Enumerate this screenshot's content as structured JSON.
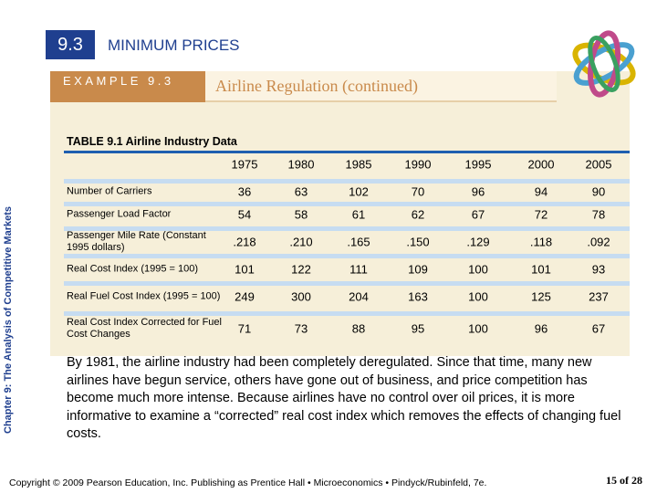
{
  "header": {
    "section_number": "9.3",
    "section_title": "MINIMUM PRICES"
  },
  "example": {
    "label": "EXAMPLE 9.3",
    "title": "Airline Regulation (continued)"
  },
  "side_label": "Chapter 9: The Analysis of Competitive Markets",
  "table": {
    "caption": "TABLE 9.1 Airline Industry Data",
    "columns": [
      1975,
      1980,
      1985,
      1990,
      1995,
      2000,
      2005
    ],
    "rows": [
      {
        "label": "Number of Carriers",
        "values": [
          36,
          63,
          102,
          70,
          96,
          94,
          90
        ]
      },
      {
        "label": "Passenger Load Factor",
        "values": [
          54,
          58,
          61,
          62,
          67,
          72,
          78
        ]
      },
      {
        "label": "Passenger Mile Rate (Constant 1995 dollars)",
        "values": [
          ".218",
          ".210",
          ".165",
          ".150",
          ".129",
          ".118",
          ".092"
        ]
      },
      {
        "label": "Real Cost Index (1995 = 100)",
        "values": [
          101,
          122,
          111,
          109,
          100,
          101,
          93
        ]
      },
      {
        "label": "Real  Fuel Cost Index (1995 = 100)",
        "values": [
          249,
          300,
          204,
          163,
          100,
          125,
          237
        ]
      },
      {
        "label": "Real Cost Index Corrected for Fuel Cost Changes",
        "values": [
          71,
          73,
          88,
          95,
          100,
          96,
          67
        ]
      }
    ]
  },
  "paragraph": "By 1981, the airline industry had been completely deregulated. Since that time, many new airlines have begun service, others have gone out of business, and price competition has become much more intense.  Because airlines have no control over oil prices, it is more informative to examine a “corrected” real cost index which removes the effects of changing fuel costs.",
  "footer": {
    "copyright": "Copyright © 2009 Pearson Education, Inc. Publishing as Prentice Hall • Microeconomics • Pindyck/Rubinfeld, 7e.",
    "page": "15 of 28"
  }
}
